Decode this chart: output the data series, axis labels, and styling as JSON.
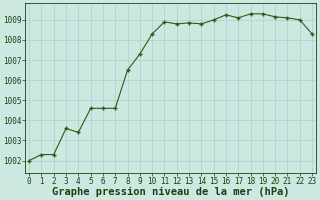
{
  "x": [
    0,
    1,
    2,
    3,
    4,
    5,
    6,
    7,
    8,
    9,
    10,
    11,
    12,
    13,
    14,
    15,
    16,
    17,
    18,
    19,
    20,
    21,
    22,
    23
  ],
  "y": [
    1002.0,
    1002.3,
    1002.3,
    1003.6,
    1003.4,
    1004.6,
    1004.6,
    1004.6,
    1006.5,
    1007.3,
    1008.3,
    1008.9,
    1008.8,
    1008.85,
    1008.8,
    1009.0,
    1009.25,
    1009.1,
    1009.3,
    1009.3,
    1009.15,
    1009.1,
    1009.0,
    1008.3
  ],
  "line_color": "#2d5a1b",
  "marker_color": "#2d5a1b",
  "bg_color": "#cce8e0",
  "grid_color": "#aad0c8",
  "xlabel": "Graphe pression niveau de la mer (hPa)",
  "xlabel_color": "#1a4010",
  "ylabel_ticks": [
    1002,
    1003,
    1004,
    1005,
    1006,
    1007,
    1008,
    1009
  ],
  "xticks": [
    0,
    1,
    2,
    3,
    4,
    5,
    6,
    7,
    8,
    9,
    10,
    11,
    12,
    13,
    14,
    15,
    16,
    17,
    18,
    19,
    20,
    21,
    22,
    23
  ],
  "ylim": [
    1001.4,
    1009.85
  ],
  "xlim": [
    -0.3,
    23.3
  ],
  "tick_color": "#1a4010",
  "tick_fontsize": 5.5,
  "xlabel_fontsize": 7.5,
  "figwidth": 3.2,
  "figheight": 2.0,
  "dpi": 100
}
